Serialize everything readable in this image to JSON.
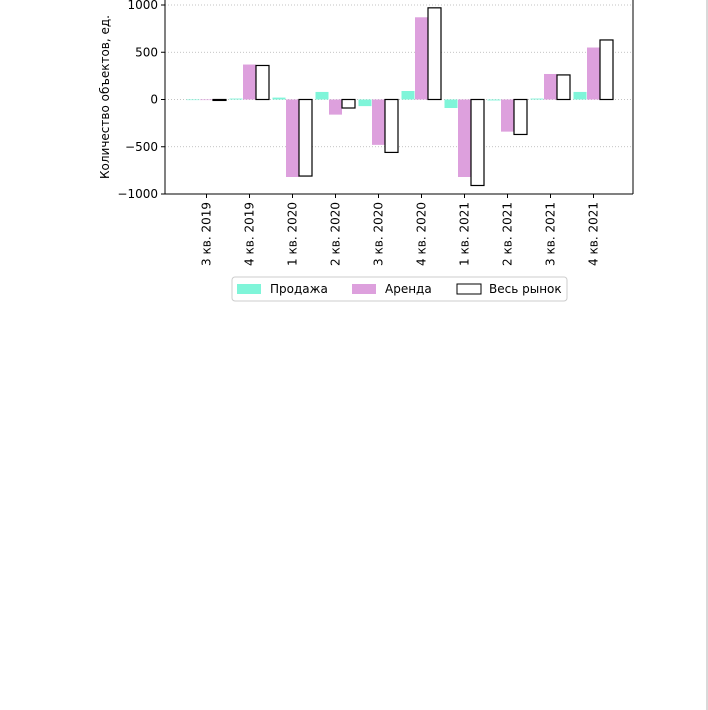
{
  "chart_data": {
    "type": "bar",
    "title": "",
    "xlabel": "",
    "ylabel": "Количество объектов, ед.",
    "ylim": [
      -1000,
      1000
    ],
    "yticks": [
      -1000,
      -500,
      0,
      500,
      1000
    ],
    "ytick_labels": [
      "−1000",
      "−500",
      "0",
      "500",
      "1000"
    ],
    "grid": "horizontal dotted",
    "legend_position": "bottom-center",
    "categories": [
      "3 кв. 2019",
      "4 кв. 2019",
      "1 кв. 2020",
      "2 кв. 2020",
      "3 кв. 2020",
      "4 кв. 2020",
      "1 кв. 2021",
      "2 кв. 2021",
      "3 кв. 2021",
      "4 кв. 2021"
    ],
    "series": [
      {
        "name": "Продажа",
        "color": "#7ff5d9",
        "style": "filled",
        "values": [
          0,
          10,
          20,
          80,
          -70,
          90,
          -90,
          -10,
          10,
          80
        ]
      },
      {
        "name": "Аренда",
        "color": "#dda0dd",
        "style": "filled",
        "values": [
          0,
          370,
          -820,
          -160,
          -480,
          870,
          -820,
          -340,
          270,
          550
        ]
      },
      {
        "name": "Весь рынок",
        "color": "#ffffff",
        "edge": "#000000",
        "style": "outlined",
        "values": [
          -10,
          360,
          -810,
          -90,
          -560,
          970,
          -910,
          -370,
          260,
          630
        ]
      }
    ]
  }
}
